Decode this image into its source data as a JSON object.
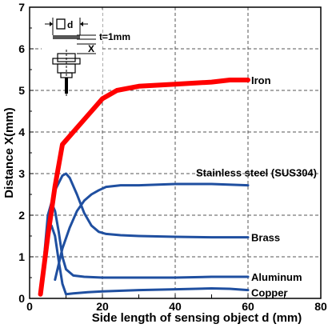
{
  "chart_data": {
    "type": "line",
    "xlabel": "Side length of sensing object d (mm)",
    "ylabel": "Distance X(mm)",
    "xlim": [
      0,
      80
    ],
    "ylim": [
      0,
      7
    ],
    "xticks": [
      "0",
      "20",
      "40",
      "60",
      "80"
    ],
    "yticks": [
      "0",
      "1",
      "2",
      "3",
      "4",
      "5",
      "6",
      "7"
    ],
    "grid": true,
    "series": [
      {
        "name": "Iron",
        "color": "#ff0000",
        "x": [
          3,
          5,
          7,
          9,
          12,
          16,
          20,
          24,
          30,
          40,
          50,
          55,
          60
        ],
        "y": [
          0.1,
          1.5,
          2.7,
          3.7,
          4.0,
          4.4,
          4.8,
          5.0,
          5.1,
          5.15,
          5.2,
          5.25,
          5.25
        ]
      },
      {
        "name": "Stainless steel (SUS304)",
        "color": "#1f4fa0",
        "x": [
          7,
          9,
          11,
          13,
          15,
          17,
          19,
          21,
          25,
          30,
          40,
          50,
          60
        ],
        "y": [
          0.45,
          1.2,
          1.7,
          2.1,
          2.35,
          2.5,
          2.6,
          2.68,
          2.72,
          2.72,
          2.75,
          2.75,
          2.72
        ]
      },
      {
        "name": "Brass",
        "color": "#1f4fa0",
        "x": [
          3,
          5,
          7,
          9,
          10,
          11,
          13,
          15,
          17,
          19,
          21,
          25,
          30,
          40,
          50,
          60
        ],
        "y": [
          0.2,
          1.6,
          2.6,
          2.95,
          3.0,
          2.9,
          2.5,
          2.05,
          1.75,
          1.6,
          1.55,
          1.52,
          1.5,
          1.48,
          1.47,
          1.47
        ]
      },
      {
        "name": "Aluminum",
        "color": "#1f4fa0",
        "x": [
          3,
          4,
          5,
          6,
          7,
          8,
          9,
          10,
          12,
          15,
          20,
          30,
          40,
          50,
          60
        ],
        "y": [
          0.1,
          1.0,
          2.0,
          2.3,
          2.1,
          1.6,
          1.0,
          0.7,
          0.55,
          0.52,
          0.5,
          0.5,
          0.5,
          0.52,
          0.52
        ]
      },
      {
        "name": "Copper",
        "color": "#1f4fa0",
        "x": [
          3,
          4,
          5,
          6,
          7,
          8,
          9,
          10,
          12,
          16,
          20,
          30,
          40,
          50,
          55,
          60
        ],
        "y": [
          0.1,
          0.9,
          1.6,
          1.75,
          1.5,
          0.9,
          0.35,
          0.1,
          0.12,
          0.15,
          0.17,
          0.2,
          0.22,
          0.24,
          0.23,
          0.2
        ]
      }
    ]
  },
  "inset": {
    "d_label": "d",
    "x_label": "X",
    "t_label": "t=1mm"
  }
}
